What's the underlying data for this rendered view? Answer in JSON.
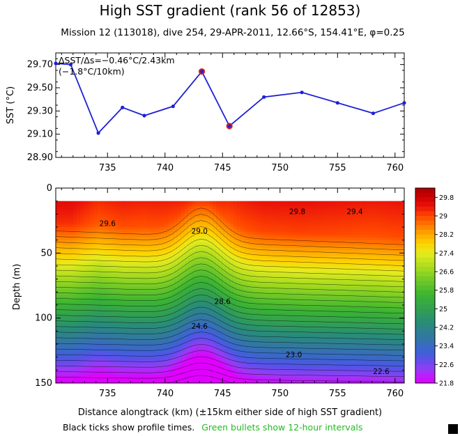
{
  "header": {
    "title": "High SST gradient (rank 56 of 12853)",
    "subtitle": "Mission 12 (113018),  dive 254,  29-APR-2011,  12.66°S, 154.41°E,  φ=0.25"
  },
  "footer": {
    "note_black": "Black ticks show profile times.",
    "note_green": "Green bullets show 12-hour intervals",
    "note_green_color": "#22bb22"
  },
  "chart_data": [
    {
      "type": "line",
      "title": "",
      "ylabel": "SST (°C)",
      "xlim": [
        730.5,
        760.8
      ],
      "ylim": [
        28.9,
        29.8
      ],
      "yticks": [
        "29.70",
        "29.50",
        "29.30",
        "29.10",
        "28.90"
      ],
      "xticks": [
        "735",
        "740",
        "745",
        "750",
        "755",
        "760"
      ],
      "annotation_line1": "ΔSST/Δs=−0.46°C/2.43km",
      "annotation_line2": "(−1.8°C/10km)",
      "line_color": "#1f1fd6",
      "highlight_color": "#d42020",
      "series": [
        {
          "x": [
            730.5,
            731.8,
            734.2,
            736.3,
            738.2,
            740.7,
            743.2,
            745.6,
            748.6,
            751.9,
            755.0,
            758.1,
            760.8
          ],
          "y": [
            29.71,
            29.7,
            29.11,
            29.33,
            29.26,
            29.34,
            29.64,
            29.17,
            29.42,
            29.46,
            29.37,
            29.28,
            29.37
          ]
        }
      ],
      "highlighted_points": [
        {
          "x": 743.2,
          "y": 29.64
        },
        {
          "x": 745.6,
          "y": 29.17
        }
      ]
    },
    {
      "type": "heatmap",
      "title": "",
      "xlabel": "Distance alongtrack (km) (±15km either side of high SST gradient)",
      "ylabel": "Depth (m)",
      "xlim": [
        730.5,
        760.8
      ],
      "ylim": [
        150,
        0
      ],
      "xticks": [
        "735",
        "740",
        "745",
        "750",
        "755",
        "760"
      ],
      "yticks": [
        "0",
        "50",
        "100",
        "150"
      ],
      "colorbar_ticks": [
        "29.8",
        "29",
        "28.2",
        "27.4",
        "26.6",
        "25.8",
        "25",
        "24.2",
        "23.4",
        "22.6",
        "21.8"
      ],
      "colorbar_range": [
        21.8,
        30.2
      ],
      "contour_labels": [
        {
          "text": "29.6",
          "x": 735.0,
          "depth": 27
        },
        {
          "text": "29.0",
          "x": 743.0,
          "depth": 33
        },
        {
          "text": "29.8",
          "x": 751.5,
          "depth": 18
        },
        {
          "text": "29.4",
          "x": 756.5,
          "depth": 18
        },
        {
          "text": "28.6",
          "x": 745.0,
          "depth": 87
        },
        {
          "text": "24.6",
          "x": 743.0,
          "depth": 106
        },
        {
          "text": "23.0",
          "x": 751.2,
          "depth": 128
        },
        {
          "text": "22.6",
          "x": 758.8,
          "depth": 141
        }
      ],
      "surface_temperature": [
        29.71,
        29.7,
        29.11,
        29.33,
        29.26,
        29.34,
        29.64,
        29.17,
        29.42,
        29.46,
        29.37,
        29.28,
        29.37
      ],
      "profile_x": [
        730.5,
        731.8,
        734.2,
        736.3,
        738.2,
        740.7,
        743.2,
        745.6,
        748.6,
        751.9,
        755.0,
        758.1,
        760.8
      ],
      "data_top_depth": 10
    }
  ]
}
